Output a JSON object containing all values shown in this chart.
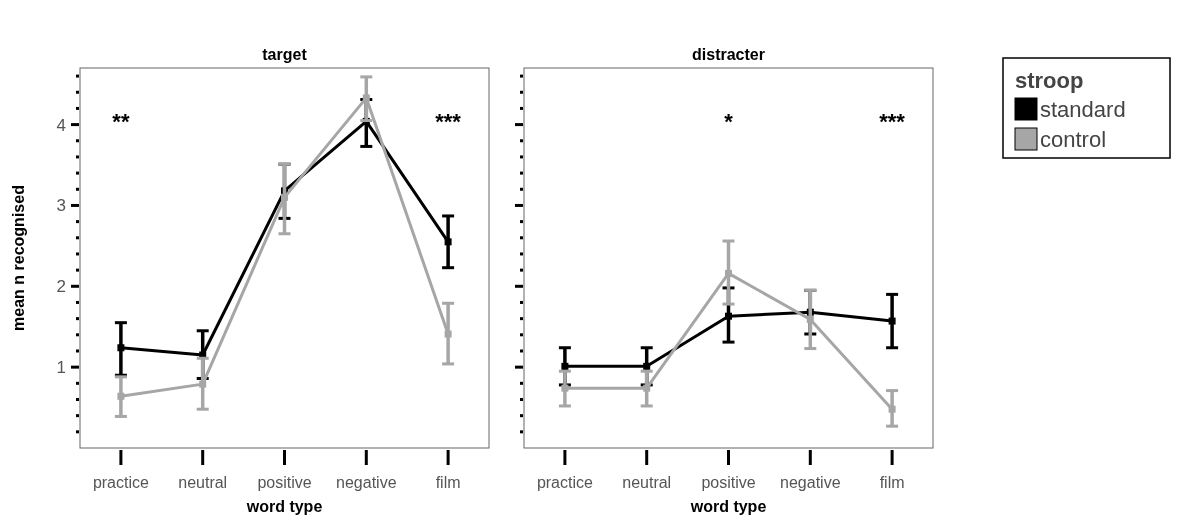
{
  "chart_data": [
    {
      "type": "line",
      "title": "target",
      "xlabel": "word type",
      "ylabel": "mean n recognised",
      "categories": [
        "practice",
        "neutral",
        "positive",
        "negative",
        "film"
      ],
      "ylim": [
        0,
        4.7
      ],
      "yticks": [
        {
          "value": 0.2,
          "label": null
        },
        {
          "value": 0.4,
          "label": null
        },
        {
          "value": 0.6,
          "label": null
        },
        {
          "value": 0.8,
          "label": null
        },
        1,
        {
          "value": 1.2,
          "label": null
        },
        {
          "value": 1.4,
          "label": null
        },
        {
          "value": 1.6,
          "label": null
        },
        {
          "value": 1.8,
          "label": null
        },
        2,
        {
          "value": 2.2,
          "label": null
        },
        {
          "value": 2.4,
          "label": null
        },
        {
          "value": 2.6,
          "label": null
        },
        {
          "value": 2.8,
          "label": null
        },
        3,
        {
          "value": 3.2,
          "label": null
        },
        {
          "value": 3.4,
          "label": null
        },
        {
          "value": 3.6,
          "label": null
        },
        {
          "value": 3.8,
          "label": null
        },
        4,
        {
          "value": 4.2,
          "label": null
        },
        {
          "value": 4.4,
          "label": null
        },
        {
          "value": 4.6,
          "label": null
        }
      ],
      "marker": "square",
      "line_style": "solid",
      "series": [
        {
          "color": "#000000",
          "values": [
            1.24,
            1.15,
            3.18,
            4.04,
            2.55
          ],
          "errors": [
            [
              0.9,
              1.55
            ],
            [
              0.86,
              1.45
            ],
            [
              2.84,
              3.51
            ],
            [
              3.73,
              4.31
            ],
            [
              2.23,
              2.87
            ]
          ]
        },
        {
          "color": "#a6a6a6",
          "values": [
            0.64,
            0.79,
            3.1,
            4.33,
            1.41
          ],
          "errors": [
            [
              0.39,
              0.88
            ],
            [
              0.48,
              1.11
            ],
            [
              2.65,
              3.51
            ],
            [
              4.05,
              4.59
            ],
            [
              1.04,
              1.79
            ]
          ]
        }
      ],
      "annotations": [
        "**",
        "***"
      ]
    },
    {
      "type": "line",
      "title": "distracter",
      "xlabel": "word type",
      "categories": [
        "practice",
        "neutral",
        "positive",
        "negative",
        "film"
      ],
      "ylim": [
        0,
        4.7
      ],
      "yticks": [
        {
          "value": 0.2,
          "label": null
        },
        {
          "value": 0.4,
          "label": null
        },
        {
          "value": 0.6,
          "label": null
        },
        {
          "value": 0.8,
          "label": null
        },
        1,
        {
          "value": 1.2,
          "label": null
        },
        {
          "value": 1.4,
          "label": null
        },
        {
          "value": 1.6,
          "label": null
        },
        {
          "value": 1.8,
          "label": null
        },
        2,
        {
          "value": 2.2,
          "label": null
        },
        {
          "value": 2.4,
          "label": null
        },
        {
          "value": 2.6,
          "label": null
        },
        {
          "value": 2.8,
          "label": null
        },
        3,
        {
          "value": 3.2,
          "label": null
        },
        {
          "value": 3.4,
          "label": null
        },
        {
          "value": 3.6,
          "label": null
        },
        {
          "value": 3.8,
          "label": null
        },
        4,
        {
          "value": 4.2,
          "label": null
        },
        {
          "value": 4.4,
          "label": null
        },
        {
          "value": 4.6,
          "label": null
        }
      ],
      "tick_labels": "x",
      "marker": "square",
      "line_style": "solid",
      "legend": "right",
      "legend_title": "stroop",
      "series": [
        {
          "name": "standard",
          "color": "#000000",
          "values": [
            1.01,
            1.01,
            1.63,
            1.68,
            1.57
          ],
          "errors": [
            [
              0.78,
              1.24
            ],
            [
              0.78,
              1.24
            ],
            [
              1.31,
              1.98
            ],
            [
              1.41,
              1.95
            ],
            [
              1.24,
              1.9
            ]
          ]
        },
        {
          "name": "control",
          "color": "#a6a6a6",
          "values": [
            0.74,
            0.74,
            2.16,
            1.59,
            0.48
          ],
          "errors": [
            [
              0.52,
              0.95
            ],
            [
              0.52,
              0.95
            ],
            [
              1.78,
              2.56
            ],
            [
              1.23,
              1.95
            ],
            [
              0.27,
              0.71
            ]
          ]
        }
      ],
      "annotations": [
        "*",
        "***"
      ]
    }
  ]
}
